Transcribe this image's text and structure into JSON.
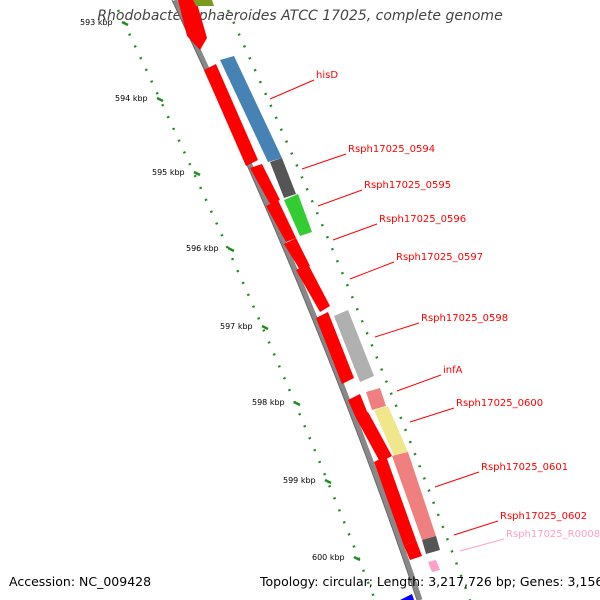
{
  "title": "Rhodobacter sphaeroides ATCC 17025, complete genome",
  "footer": {
    "accession": "Accession: NC_009428",
    "topology": "Topology: circular; Length: 3,217,726 bp; Genes: 3,156"
  },
  "colors": {
    "backbone": "#888888",
    "cds": "#ff0000",
    "tick": "#228b22",
    "label_line": "#ff0000",
    "rna": "#ffa0c8"
  },
  "ticks": [
    {
      "label": "593 kbp",
      "kbp": 593
    },
    {
      "label": "594 kbp",
      "kbp": 594
    },
    {
      "label": "595 kbp",
      "kbp": 595
    },
    {
      "label": "596 kbp",
      "kbp": 596
    },
    {
      "label": "597 kbp",
      "kbp": 597
    },
    {
      "label": "598 kbp",
      "kbp": 598
    },
    {
      "label": "599 kbp",
      "kbp": 599
    },
    {
      "label": "600 kbp",
      "kbp": 600
    }
  ],
  "genes": [
    {
      "name": "hisD",
      "color": "#ff0000"
    },
    {
      "name": "Rsph17025_0594",
      "color": "#ff0000"
    },
    {
      "name": "Rsph17025_0595",
      "color": "#ff0000"
    },
    {
      "name": "Rsph17025_0596",
      "color": "#ff0000"
    },
    {
      "name": "Rsph17025_0597",
      "color": "#ff0000"
    },
    {
      "name": "Rsph17025_0598",
      "color": "#ff0000"
    },
    {
      "name": "infA",
      "color": "#ff0000"
    },
    {
      "name": "Rsph17025_0600",
      "color": "#ff0000"
    },
    {
      "name": "Rsph17025_0601",
      "color": "#ff0000"
    },
    {
      "name": "Rsph17025_0602",
      "color": "#ff0000"
    },
    {
      "name": "Rsph17025_R0008",
      "color": "#ffa0c8"
    }
  ]
}
